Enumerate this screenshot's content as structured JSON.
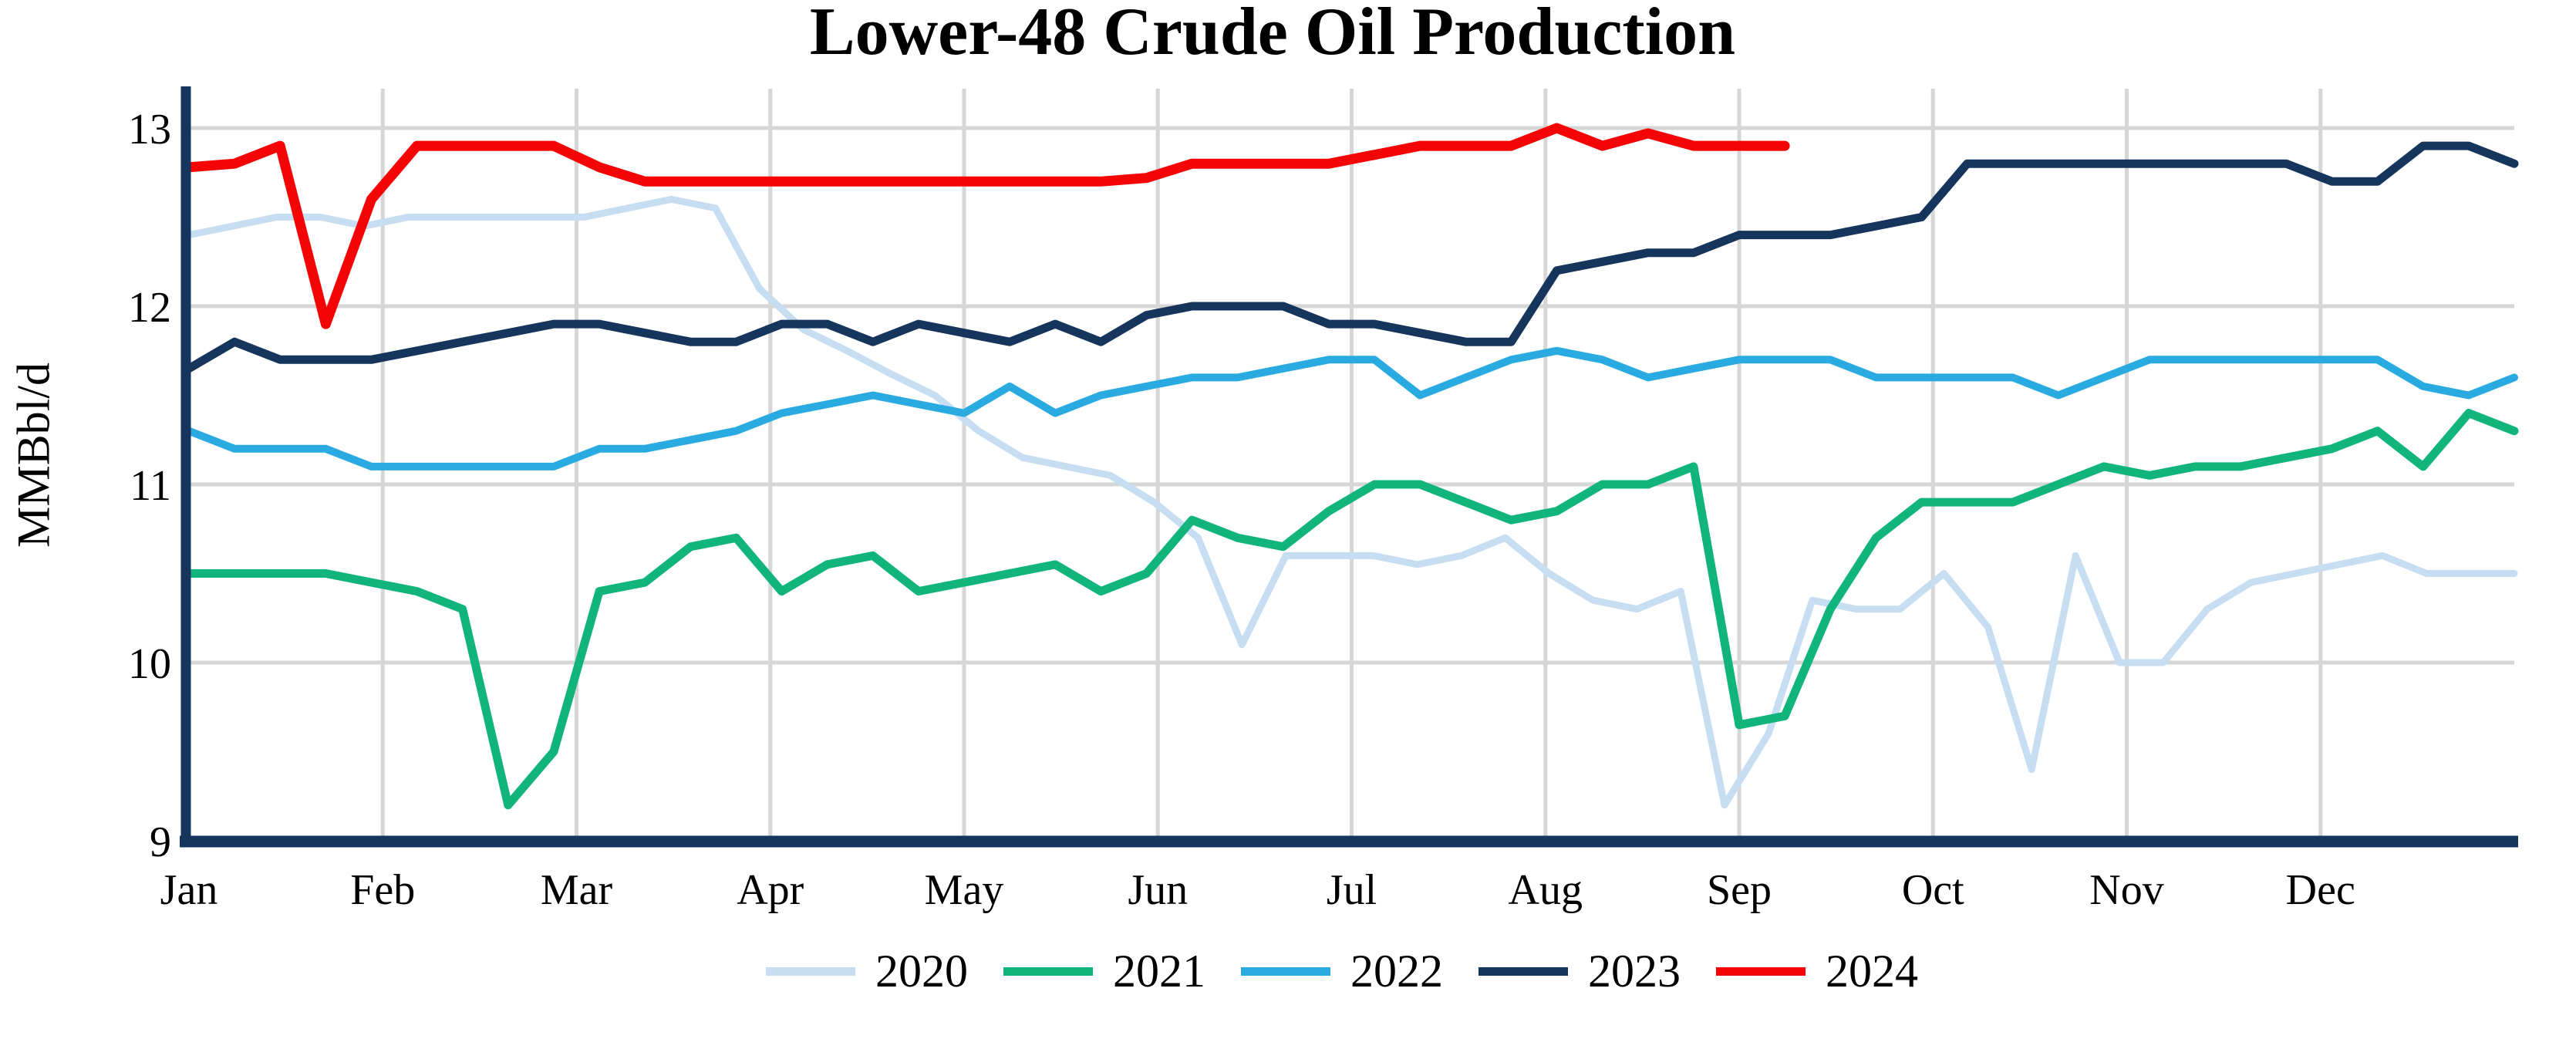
{
  "title": "Lower-48 Crude Oil Production",
  "y_axis_label": "MMBbl/d",
  "colors": {
    "axis": "#16355c",
    "gridline": "#d6d6d6",
    "background": "#ffffff",
    "text": "#000000"
  },
  "chart_data": {
    "type": "line",
    "title": "Lower-48 Crude Oil Production",
    "xlabel": "",
    "ylabel": "MMBbl/d",
    "x_unit": "week",
    "ylim": [
      9,
      13
    ],
    "yticks": [
      9,
      10,
      11,
      12,
      13
    ],
    "xticklabels": [
      "Jan",
      "Feb",
      "Mar",
      "Apr",
      "May",
      "Jun",
      "Jul",
      "Aug",
      "Sep",
      "Oct",
      "Nov",
      "Dec"
    ],
    "grid": true,
    "legend_position": "bottom",
    "series": [
      {
        "name": "2020",
        "color": "#c7ddf2",
        "values": [
          12.4,
          12.45,
          12.5,
          12.5,
          12.45,
          12.5,
          12.5,
          12.5,
          12.5,
          12.5,
          12.55,
          12.6,
          12.55,
          12.1,
          11.87,
          11.75,
          11.62,
          11.5,
          11.3,
          11.15,
          11.1,
          11.05,
          10.9,
          10.7,
          10.1,
          10.6,
          10.6,
          10.6,
          10.55,
          10.6,
          10.7,
          10.5,
          10.35,
          10.3,
          10.4,
          9.2,
          9.6,
          10.35,
          10.3,
          10.3,
          10.5,
          10.2,
          9.4,
          10.6,
          10.0,
          10.0,
          10.3,
          10.45,
          10.5,
          10.55,
          10.6,
          10.5,
          10.5,
          10.5
        ]
      },
      {
        "name": "2021",
        "color": "#11b57c",
        "values": [
          10.5,
          10.5,
          10.5,
          10.5,
          10.45,
          10.4,
          10.3,
          9.2,
          9.5,
          10.4,
          10.45,
          10.65,
          10.7,
          10.4,
          10.55,
          10.6,
          10.4,
          10.45,
          10.5,
          10.55,
          10.4,
          10.5,
          10.8,
          10.7,
          10.65,
          10.85,
          11.0,
          11.0,
          10.9,
          10.8,
          10.85,
          11.0,
          11.0,
          11.1,
          9.65,
          9.7,
          10.3,
          10.7,
          10.9,
          10.9,
          10.9,
          11.0,
          11.1,
          11.05,
          11.1,
          11.1,
          11.15,
          11.2,
          11.3,
          11.1,
          11.4,
          11.3
        ]
      },
      {
        "name": "2022",
        "color": "#29abe2",
        "values": [
          11.3,
          11.2,
          11.2,
          11.2,
          11.1,
          11.1,
          11.1,
          11.1,
          11.1,
          11.2,
          11.2,
          11.25,
          11.3,
          11.4,
          11.45,
          11.5,
          11.45,
          11.4,
          11.55,
          11.4,
          11.5,
          11.55,
          11.6,
          11.6,
          11.65,
          11.7,
          11.7,
          11.5,
          11.6,
          11.7,
          11.75,
          11.7,
          11.6,
          11.65,
          11.7,
          11.7,
          11.7,
          11.6,
          11.6,
          11.6,
          11.6,
          11.5,
          11.6,
          11.7,
          11.7,
          11.7,
          11.7,
          11.7,
          11.7,
          11.55,
          11.5,
          11.6
        ]
      },
      {
        "name": "2023",
        "color": "#16355c",
        "values": [
          11.65,
          11.8,
          11.7,
          11.7,
          11.7,
          11.75,
          11.8,
          11.85,
          11.9,
          11.9,
          11.85,
          11.8,
          11.8,
          11.9,
          11.9,
          11.8,
          11.9,
          11.85,
          11.8,
          11.9,
          11.8,
          11.95,
          12.0,
          12.0,
          12.0,
          11.9,
          11.9,
          11.85,
          11.8,
          11.8,
          12.2,
          12.25,
          12.3,
          12.3,
          12.4,
          12.4,
          12.4,
          12.45,
          12.5,
          12.8,
          12.8,
          12.8,
          12.8,
          12.8,
          12.8,
          12.8,
          12.8,
          12.7,
          12.7,
          12.9,
          12.9,
          12.8
        ]
      },
      {
        "name": "2024",
        "color": "#f40404",
        "values": [
          12.78,
          12.8,
          12.9,
          11.9,
          12.6,
          12.9,
          12.9,
          12.9,
          12.9,
          12.78,
          12.7,
          12.7,
          12.7,
          12.7,
          12.7,
          12.7,
          12.7,
          12.7,
          12.7,
          12.7,
          12.7,
          12.72,
          12.8,
          12.8,
          12.8,
          12.8,
          12.85,
          12.9,
          12.9,
          12.9,
          13.0,
          12.9,
          12.97,
          12.9,
          12.9,
          12.9
        ]
      }
    ]
  }
}
